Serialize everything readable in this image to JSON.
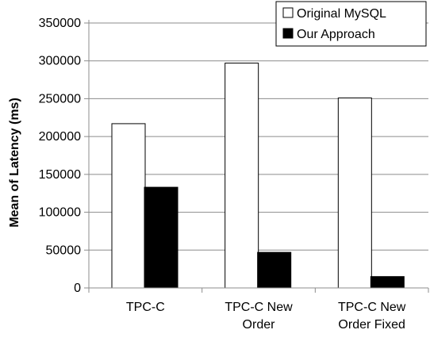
{
  "chart_data": {
    "type": "bar",
    "title": "",
    "xlabel": "",
    "ylabel": "Mean of Latency (ms)",
    "ylim": [
      0,
      350000
    ],
    "yticks": [
      0,
      50000,
      100000,
      150000,
      200000,
      250000,
      300000,
      350000
    ],
    "categories": [
      [
        "TPC-C"
      ],
      [
        "TPC-C New",
        "Order"
      ],
      [
        "TPC-C New",
        "Order Fixed"
      ]
    ],
    "series": [
      {
        "name": "Original MySQL",
        "color": "#ffffff",
        "values": [
          217000,
          297000,
          251000
        ]
      },
      {
        "name": "Our Approach",
        "color": "#000000",
        "values": [
          133000,
          47000,
          15000
        ]
      }
    ],
    "legend_position": "top-right",
    "grid": true
  }
}
